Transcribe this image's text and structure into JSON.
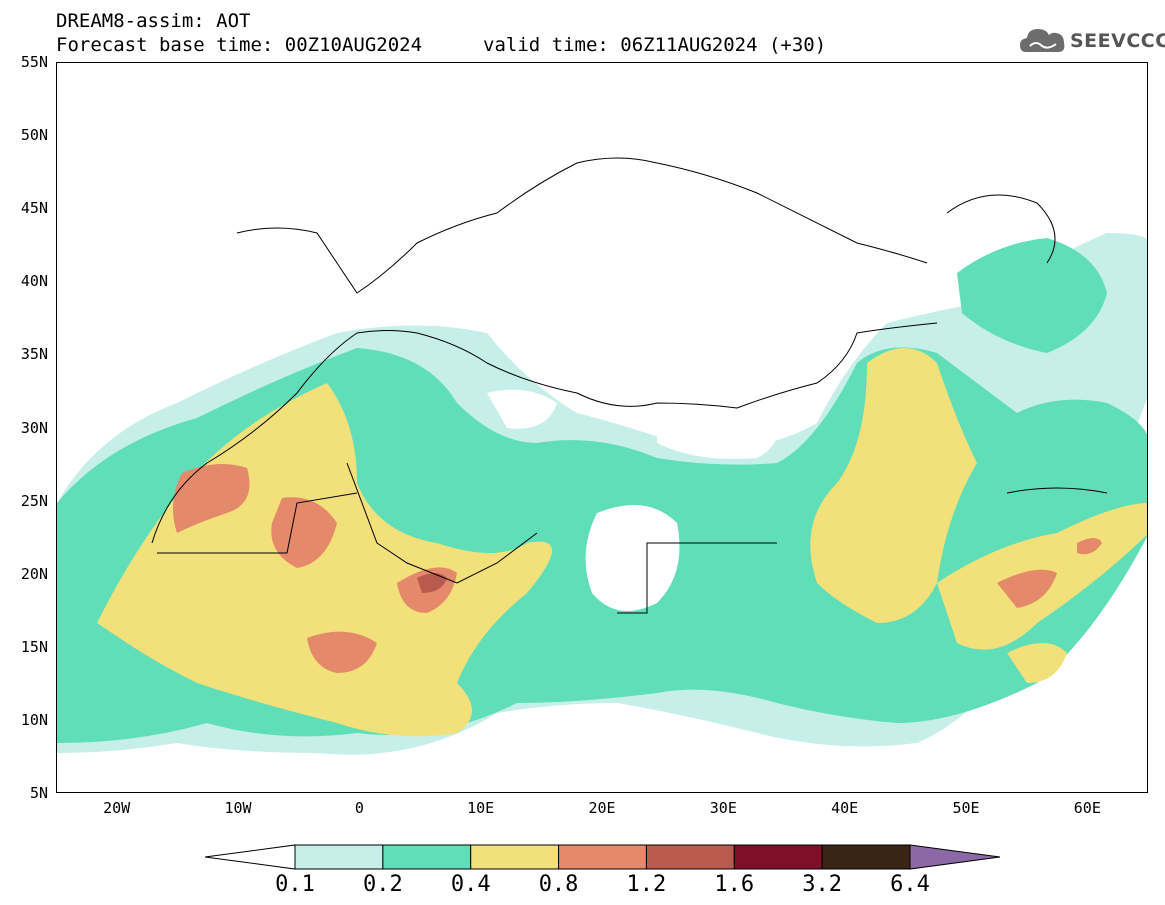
{
  "header": {
    "model_line": "DREAM8-assim: AOT",
    "base_time_line": "Forecast base time: 00Z10AUG2024",
    "valid_time_line": "valid time: 06Z11AUG2024 (+30)"
  },
  "logo": {
    "text": "SEEVCCC",
    "icon": "cloud-icon"
  },
  "map": {
    "lat_labels": [
      "55N",
      "50N",
      "45N",
      "40N",
      "35N",
      "30N",
      "25N",
      "20N",
      "15N",
      "10N",
      "5N"
    ],
    "lon_labels": [
      "20W",
      "10W",
      "0",
      "10E",
      "20E",
      "30E",
      "40E",
      "50E",
      "60E"
    ],
    "lat_range": [
      5,
      55
    ],
    "lon_range": [
      -25,
      65
    ],
    "fill_colors": {
      "c01": "#c5efe8",
      "c02": "#5fdeb8",
      "c04": "#f2e17a",
      "c08": "#e4896a",
      "c12": "#b85a4e",
      "c16": "#7d1028",
      "c32": "#3a2414",
      "c64": "#8c68a6"
    }
  },
  "colorbar": {
    "labels": [
      "0.1",
      "0.2",
      "0.4",
      "0.8",
      "1.2",
      "1.6",
      "3.2",
      "6.4"
    ],
    "colors": [
      "#c5efe8",
      "#5fdeb8",
      "#f2e17a",
      "#e4896a",
      "#b85a4e",
      "#7d1028",
      "#3a2414"
    ],
    "left_triangle_color": "#ffffff",
    "right_triangle_color": "#8c68a6"
  }
}
